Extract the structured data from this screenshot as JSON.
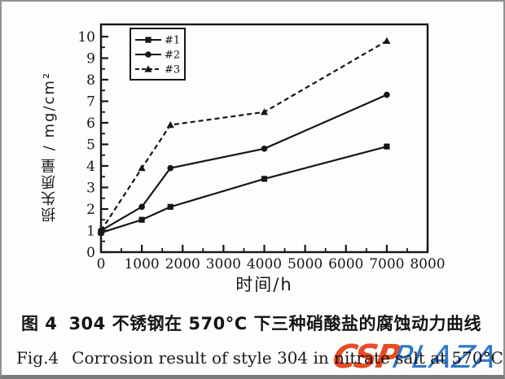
{
  "chart_data": {
    "type": "line",
    "title": "",
    "xlabel": "时间/h",
    "ylabel": "损失质量 / mg/cm²",
    "xlim": [
      0,
      8000
    ],
    "ylim": [
      0,
      10
    ],
    "x_ticks": [
      0,
      1000,
      2000,
      3000,
      4000,
      5000,
      6000,
      7000,
      8000
    ],
    "x_minor_step": 500,
    "y_ticks": [
      0,
      1,
      2,
      3,
      4,
      5,
      6,
      7,
      8,
      9,
      10
    ],
    "y_minor_step": 0.5,
    "grid": false,
    "legend_position": "top-left-inside",
    "ink": "#161616",
    "x": [
      0,
      1000,
      1700,
      4000,
      7000
    ],
    "series": [
      {
        "name": "#1",
        "marker": "square",
        "line": "solid",
        "values": [
          0.9,
          1.5,
          2.1,
          3.4,
          4.9
        ]
      },
      {
        "name": "#2",
        "marker": "circle",
        "line": "solid",
        "values": [
          1.0,
          2.1,
          3.9,
          4.8,
          7.3
        ]
      },
      {
        "name": "#3",
        "marker": "triangle",
        "line": "dashed",
        "values": [
          1.0,
          3.9,
          5.9,
          6.5,
          9.8
        ]
      }
    ]
  },
  "captions": {
    "zh_label": "图 4",
    "zh_text": "304 不锈钢在 570°C 下三种硝酸盐的腐蚀动力曲线",
    "en_label": "Fig.4",
    "en_text": "Corrosion result of style 304 in nitrate salt at 570°C"
  },
  "logo": {
    "csp": "CSP",
    "plaza": "PLAZA",
    "csp_color": "#e63c14",
    "plaza_color": "#1e6cc8"
  },
  "frame": {
    "border_color": "#919191",
    "background": "#fdfdfc"
  }
}
